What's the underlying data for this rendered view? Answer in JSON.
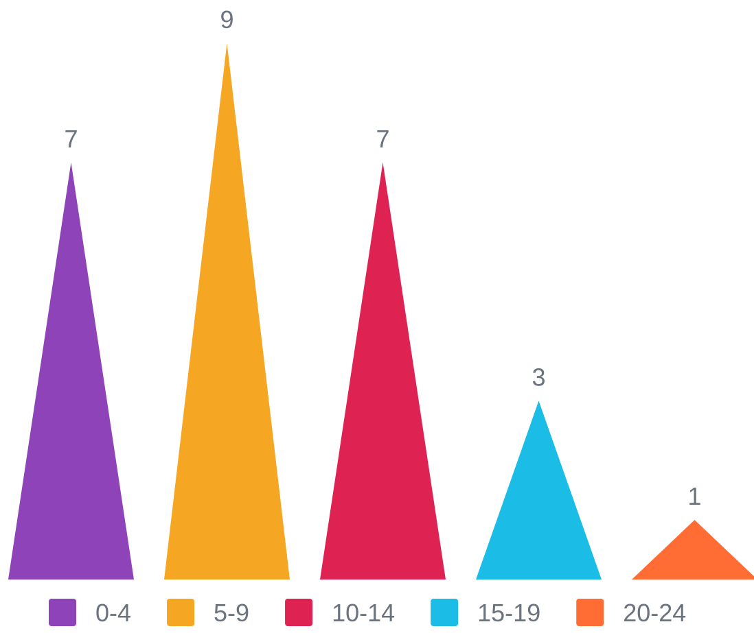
{
  "chart_data": {
    "type": "pyramid",
    "categories": [
      "0-4",
      "5-9",
      "10-14",
      "15-19",
      "20-24"
    ],
    "values": [
      7,
      9,
      7,
      3,
      1
    ],
    "colors": [
      "#8e44b8",
      "#f5a623",
      "#de2353",
      "#1bbde6",
      "#ff6d35"
    ],
    "ylim": [
      0,
      9
    ],
    "legend": "bottom"
  }
}
